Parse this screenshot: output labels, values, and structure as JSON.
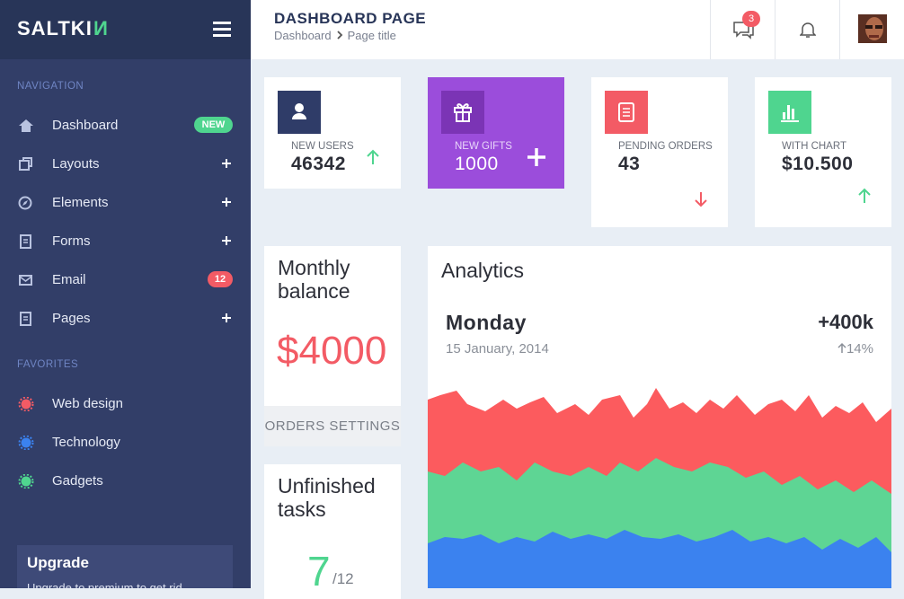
{
  "sidebar": {
    "logo": {
      "main": "SALTKI",
      "accent": "N"
    },
    "sections": [
      {
        "title": "NAVIGATION",
        "items": [
          {
            "label": "Dashboard",
            "badge": "NEW"
          },
          {
            "label": "Layouts"
          },
          {
            "label": "Elements"
          },
          {
            "label": "Forms"
          },
          {
            "label": "Email",
            "badge": "12"
          },
          {
            "label": "Pages"
          }
        ]
      },
      {
        "title": "FAVORITES",
        "items": [
          {
            "label": "Web design"
          },
          {
            "label": "Technology"
          },
          {
            "label": "Gadgets"
          }
        ]
      }
    ],
    "upgrade": {
      "title": "Upgrade",
      "text": "Upgrade to premium to get rid"
    }
  },
  "header": {
    "title": "DASHBOARD PAGE",
    "breadcrumb": [
      "Dashboard",
      "Page title"
    ],
    "messages_badge": "3"
  },
  "stats": [
    {
      "label": "NEW USERS",
      "value": "46342"
    },
    {
      "label": "NEW GIFTS",
      "value": "1000"
    },
    {
      "label": "PENDING ORDERS",
      "value": "43"
    },
    {
      "label": "WITH CHART",
      "value": "$10.500"
    }
  ],
  "balance": {
    "title": "Monthly balance",
    "amount": "$4000",
    "action": "ORDERS SETTINGS"
  },
  "tasks": {
    "title": "Unfinished tasks",
    "done": "7",
    "total": "/12"
  },
  "analytics": {
    "title": "Analytics",
    "day": "Monday",
    "date": "15 January, 2014",
    "value": "+400k",
    "change": "14%"
  }
}
